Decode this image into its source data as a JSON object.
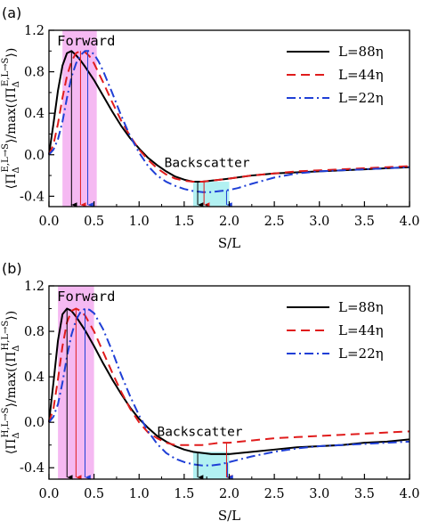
{
  "colors": {
    "L88": "#000000",
    "L44": "#e01c1c",
    "L22": "#1f3fd6",
    "forward_band": "#ec7fe8",
    "backscatter_band": "#7fe7ea"
  },
  "chart_data": [
    {
      "panel_label": "(a)",
      "type": "line",
      "xlabel": "S/L",
      "ylabel": "⟨Π_Δ^{E,L→S}⟩/max(⟨Π_Δ^{E,L→S}⟩)",
      "ylabel_parts": {
        "pre": "⟨Π",
        "sub": "Δ",
        "sup": "E,L→S",
        "mid": "⟩/max(⟨Π",
        "sub2": "Δ",
        "sup2": "E,L→S",
        "post": "⟩)"
      },
      "xlim": [
        0,
        4
      ],
      "ylim": [
        -0.5,
        1.2
      ],
      "xticks": [
        "0.0",
        "0.5",
        "1.0",
        "1.5",
        "2.0",
        "2.5",
        "3.0",
        "3.5",
        "4.0"
      ],
      "yticks": [
        "-0.4",
        "0.0",
        "0.4",
        "0.8",
        "1.2"
      ],
      "legend_position": "top-right",
      "annotations": {
        "forward": "Forward",
        "backscatter": "Backscatter"
      },
      "forward_band": [
        0.15,
        0.53
      ],
      "backscatter_band": [
        1.6,
        2.0
      ],
      "peak_arrows": [
        0.25,
        0.35,
        0.43
      ],
      "min_arrows": [
        1.65,
        1.72,
        1.97
      ],
      "series": [
        {
          "name": "L=88η",
          "style": "solid",
          "x": [
            0.0,
            0.05,
            0.1,
            0.15,
            0.2,
            0.25,
            0.3,
            0.35,
            0.4,
            0.5,
            0.6,
            0.7,
            0.8,
            0.9,
            1.0,
            1.1,
            1.2,
            1.3,
            1.4,
            1.5,
            1.6,
            1.7,
            1.8,
            1.9,
            2.0,
            2.25,
            2.5,
            2.75,
            3.0,
            3.25,
            3.5,
            3.75,
            4.0
          ],
          "y": [
            0.0,
            0.3,
            0.62,
            0.86,
            0.98,
            1.0,
            0.96,
            0.91,
            0.85,
            0.72,
            0.57,
            0.42,
            0.28,
            0.16,
            0.06,
            -0.03,
            -0.1,
            -0.16,
            -0.21,
            -0.24,
            -0.26,
            -0.26,
            -0.25,
            -0.24,
            -0.23,
            -0.2,
            -0.18,
            -0.17,
            -0.16,
            -0.15,
            -0.14,
            -0.13,
            -0.12
          ]
        },
        {
          "name": "L=44η",
          "style": "dashed",
          "x": [
            0.0,
            0.05,
            0.1,
            0.15,
            0.2,
            0.25,
            0.3,
            0.35,
            0.4,
            0.45,
            0.5,
            0.6,
            0.7,
            0.8,
            0.9,
            1.0,
            1.1,
            1.2,
            1.3,
            1.4,
            1.5,
            1.6,
            1.7,
            1.8,
            1.9,
            2.0,
            2.25,
            2.5,
            2.75,
            3.0,
            3.25,
            3.5,
            3.75,
            4.0
          ],
          "y": [
            0.0,
            0.1,
            0.3,
            0.55,
            0.76,
            0.9,
            0.98,
            1.0,
            0.99,
            0.95,
            0.88,
            0.7,
            0.51,
            0.33,
            0.18,
            0.05,
            -0.05,
            -0.13,
            -0.19,
            -0.23,
            -0.25,
            -0.26,
            -0.26,
            -0.25,
            -0.24,
            -0.23,
            -0.2,
            -0.18,
            -0.16,
            -0.15,
            -0.14,
            -0.13,
            -0.12,
            -0.11
          ]
        },
        {
          "name": "L=22η",
          "style": "dashdot",
          "x": [
            0.0,
            0.05,
            0.1,
            0.15,
            0.2,
            0.25,
            0.3,
            0.35,
            0.4,
            0.45,
            0.5,
            0.55,
            0.6,
            0.7,
            0.8,
            0.9,
            1.0,
            1.1,
            1.2,
            1.3,
            1.4,
            1.5,
            1.6,
            1.7,
            1.8,
            1.9,
            2.0,
            2.1,
            2.25,
            2.5,
            2.75,
            3.0,
            3.25,
            3.5,
            3.75,
            4.0
          ],
          "y": [
            0.0,
            0.05,
            0.15,
            0.32,
            0.55,
            0.75,
            0.88,
            0.96,
            1.0,
            1.0,
            0.97,
            0.9,
            0.81,
            0.6,
            0.38,
            0.18,
            0.02,
            -0.11,
            -0.2,
            -0.26,
            -0.3,
            -0.33,
            -0.35,
            -0.36,
            -0.36,
            -0.35,
            -0.34,
            -0.32,
            -0.28,
            -0.22,
            -0.18,
            -0.16,
            -0.15,
            -0.14,
            -0.13,
            -0.12
          ]
        }
      ]
    },
    {
      "panel_label": "(b)",
      "type": "line",
      "xlabel": "S/L",
      "ylabel": "⟨Π_Δ^{H,L→S}⟩/max(⟨Π_Δ^{H,L→S}⟩)",
      "ylabel_parts": {
        "pre": "⟨Π",
        "sub": "Δ",
        "sup": "H,L→S",
        "mid": "⟩/max(⟨Π",
        "sub2": "Δ",
        "sup2": "H,L→S",
        "post": "⟩)"
      },
      "xlim": [
        0,
        4
      ],
      "ylim": [
        -0.5,
        1.2
      ],
      "xticks": [
        "0.0",
        "0.5",
        "1.0",
        "1.5",
        "2.0",
        "2.5",
        "3.0",
        "3.5",
        "4.0"
      ],
      "yticks": [
        "-0.4",
        "0.0",
        "0.4",
        "0.8",
        "1.2"
      ],
      "legend_position": "top-right",
      "annotations": {
        "forward": "Forward",
        "backscatter": "Backscatter"
      },
      "forward_band": [
        0.1,
        0.5
      ],
      "backscatter_band": [
        1.6,
        2.0
      ],
      "peak_arrows": [
        0.2,
        0.3,
        0.4
      ],
      "min_arrows": [
        1.65,
        1.97,
        1.98
      ],
      "series": [
        {
          "name": "L=88η",
          "style": "solid",
          "x": [
            0.0,
            0.05,
            0.1,
            0.15,
            0.2,
            0.25,
            0.3,
            0.4,
            0.5,
            0.6,
            0.7,
            0.8,
            0.9,
            1.0,
            1.1,
            1.2,
            1.3,
            1.4,
            1.5,
            1.6,
            1.7,
            1.8,
            1.9,
            2.0,
            2.25,
            2.5,
            2.75,
            3.0,
            3.25,
            3.5,
            3.75,
            4.0
          ],
          "y": [
            0.0,
            0.35,
            0.72,
            0.95,
            1.0,
            0.98,
            0.93,
            0.81,
            0.67,
            0.52,
            0.38,
            0.25,
            0.13,
            0.03,
            -0.05,
            -0.12,
            -0.17,
            -0.21,
            -0.24,
            -0.26,
            -0.27,
            -0.28,
            -0.28,
            -0.28,
            -0.26,
            -0.24,
            -0.22,
            -0.21,
            -0.2,
            -0.18,
            -0.17,
            -0.15
          ]
        },
        {
          "name": "L=44η",
          "style": "dashed",
          "x": [
            0.0,
            0.05,
            0.1,
            0.15,
            0.2,
            0.25,
            0.3,
            0.35,
            0.4,
            0.5,
            0.6,
            0.7,
            0.8,
            0.9,
            1.0,
            1.1,
            1.2,
            1.3,
            1.4,
            1.5,
            1.6,
            1.7,
            1.8,
            1.9,
            2.0,
            2.25,
            2.5,
            2.75,
            3.0,
            3.25,
            3.5,
            3.75,
            4.0
          ],
          "y": [
            0.0,
            0.12,
            0.38,
            0.67,
            0.88,
            0.98,
            1.0,
            0.98,
            0.94,
            0.8,
            0.62,
            0.44,
            0.27,
            0.12,
            0.0,
            -0.09,
            -0.14,
            -0.18,
            -0.2,
            -0.2,
            -0.2,
            -0.2,
            -0.19,
            -0.18,
            -0.18,
            -0.16,
            -0.14,
            -0.13,
            -0.12,
            -0.11,
            -0.1,
            -0.09,
            -0.08
          ]
        },
        {
          "name": "L=22η",
          "style": "dashdot",
          "x": [
            0.0,
            0.05,
            0.1,
            0.15,
            0.2,
            0.25,
            0.3,
            0.35,
            0.4,
            0.45,
            0.5,
            0.6,
            0.7,
            0.8,
            0.9,
            1.0,
            1.1,
            1.2,
            1.3,
            1.4,
            1.5,
            1.6,
            1.7,
            1.8,
            1.9,
            2.0,
            2.1,
            2.25,
            2.5,
            2.75,
            3.0,
            3.25,
            3.5,
            3.75,
            4.0
          ],
          "y": [
            0.0,
            0.05,
            0.16,
            0.35,
            0.58,
            0.77,
            0.9,
            0.97,
            1.0,
            0.99,
            0.96,
            0.82,
            0.63,
            0.42,
            0.23,
            0.06,
            -0.08,
            -0.19,
            -0.27,
            -0.32,
            -0.35,
            -0.37,
            -0.38,
            -0.38,
            -0.37,
            -0.35,
            -0.33,
            -0.3,
            -0.26,
            -0.23,
            -0.21,
            -0.2,
            -0.19,
            -0.18,
            -0.17
          ]
        }
      ]
    }
  ]
}
